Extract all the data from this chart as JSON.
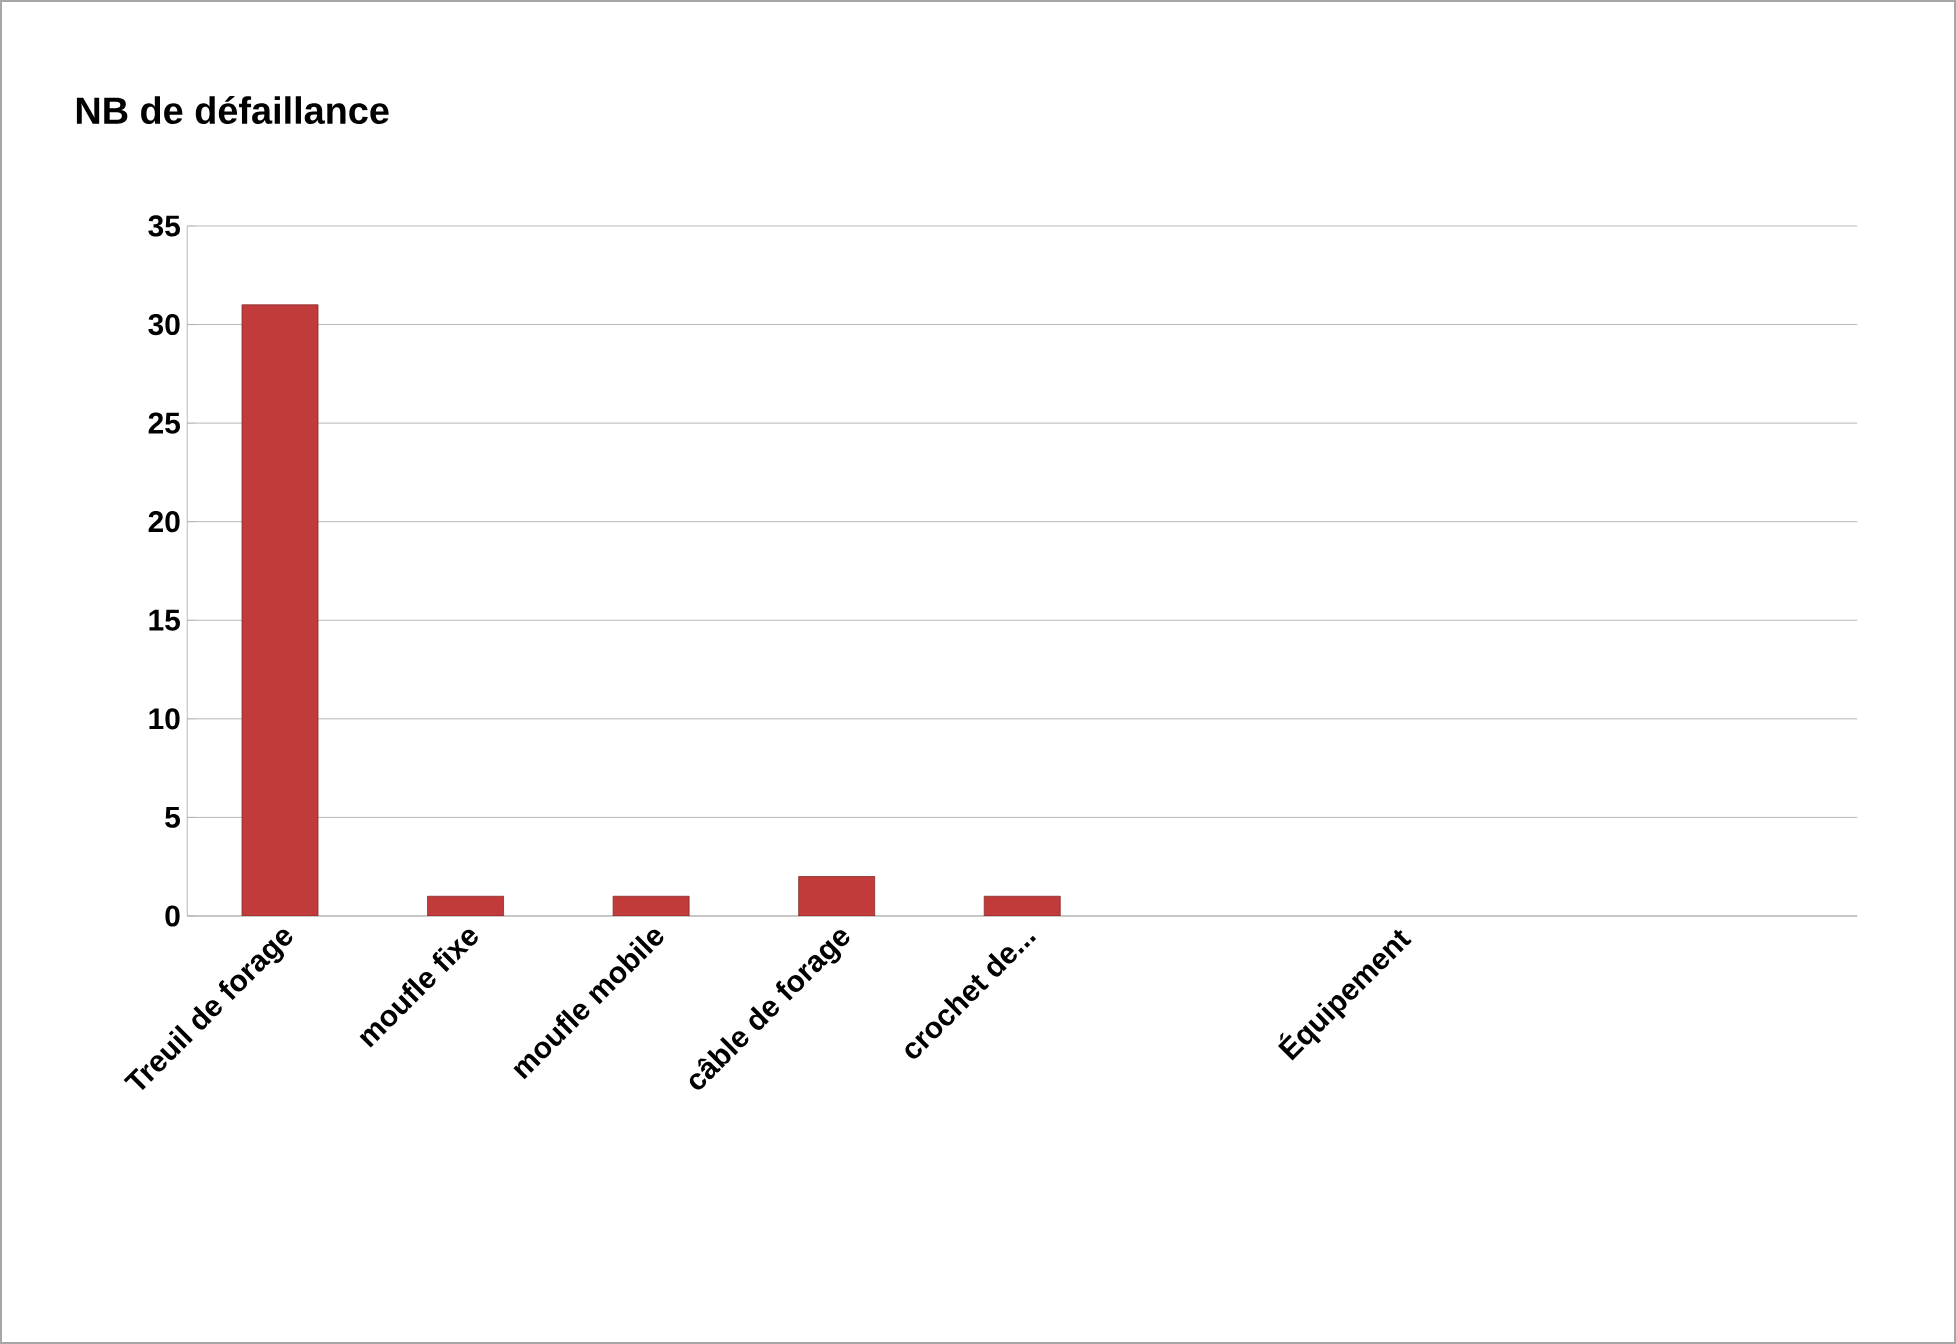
{
  "chart_data": {
    "type": "bar",
    "title": "NB de défaillance",
    "categories": [
      "Treuil de forage",
      "moufle fixe",
      "moufle mobile",
      "câble de forage",
      "crochet de...",
      null,
      "Équipement",
      null,
      null
    ],
    "values": [
      31,
      1,
      1,
      2,
      1,
      null,
      null,
      null,
      null
    ],
    "color": "#c23b3b",
    "ylim": [
      0,
      35
    ],
    "yticks": [
      0,
      5,
      10,
      15,
      20,
      25,
      30,
      35
    ],
    "grid": "y"
  }
}
